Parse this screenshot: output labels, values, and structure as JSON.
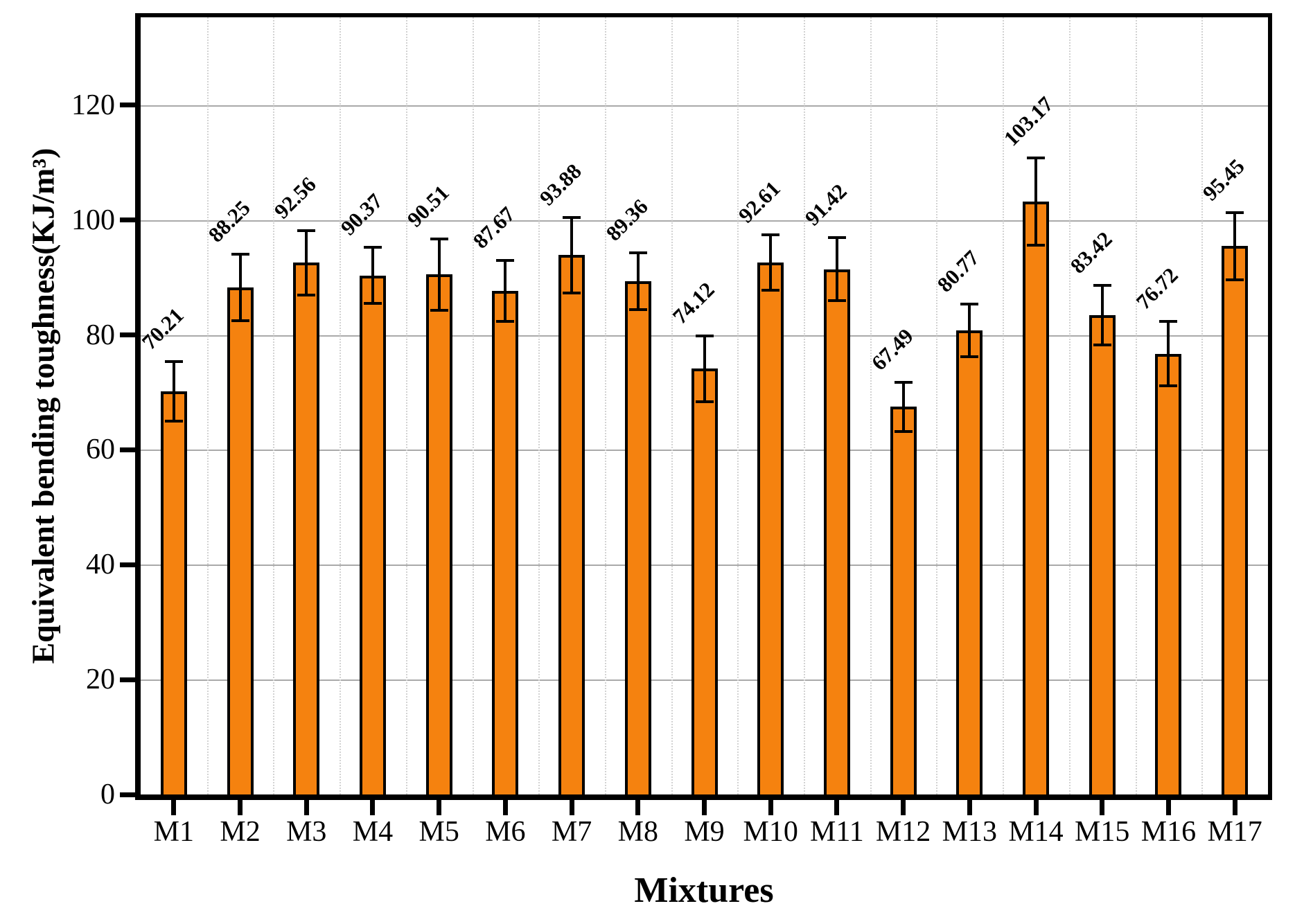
{
  "chart_data": {
    "type": "bar",
    "title": "",
    "xlabel": "Mixtures",
    "ylabel": "Equivalent bending toughness(KJ/m³)",
    "categories": [
      "M1",
      "M2",
      "M3",
      "M4",
      "M5",
      "M6",
      "M7",
      "M8",
      "M9",
      "M10",
      "M11",
      "M12",
      "M13",
      "M14",
      "M15",
      "M16",
      "M17"
    ],
    "values": [
      70.21,
      88.25,
      92.56,
      90.37,
      90.51,
      87.67,
      93.88,
      89.36,
      74.12,
      92.61,
      91.42,
      67.49,
      80.77,
      103.17,
      83.42,
      76.72,
      95.45
    ],
    "errors": [
      5.2,
      5.8,
      5.6,
      4.9,
      6.2,
      5.3,
      6.6,
      4.9,
      5.7,
      4.8,
      5.5,
      4.3,
      4.6,
      7.6,
      5.2,
      5.6,
      5.8
    ],
    "value_labels": [
      "70.21",
      "88.25",
      "92.56",
      "90.37",
      "90.51",
      "87.67",
      "93.88",
      "89.36",
      "74.12",
      "92.61",
      "91.42",
      "67.49",
      "80.77",
      "103.17",
      "83.42",
      "76.72",
      "95.45"
    ],
    "yticks": [
      0,
      20,
      40,
      60,
      80,
      100,
      120
    ],
    "ylim": [
      0,
      135.3
    ],
    "grid": {
      "horizontal": "solid",
      "vertical": "dotted",
      "legend": "none"
    },
    "colors": {
      "bar_fill": "#F5820F",
      "bar_edge": "#000000",
      "error_bar": "#000000",
      "hgrid": "#a9a9a9",
      "vgrid": "#d2d2d2",
      "frame": "#000000",
      "background": "#ffffff"
    }
  }
}
